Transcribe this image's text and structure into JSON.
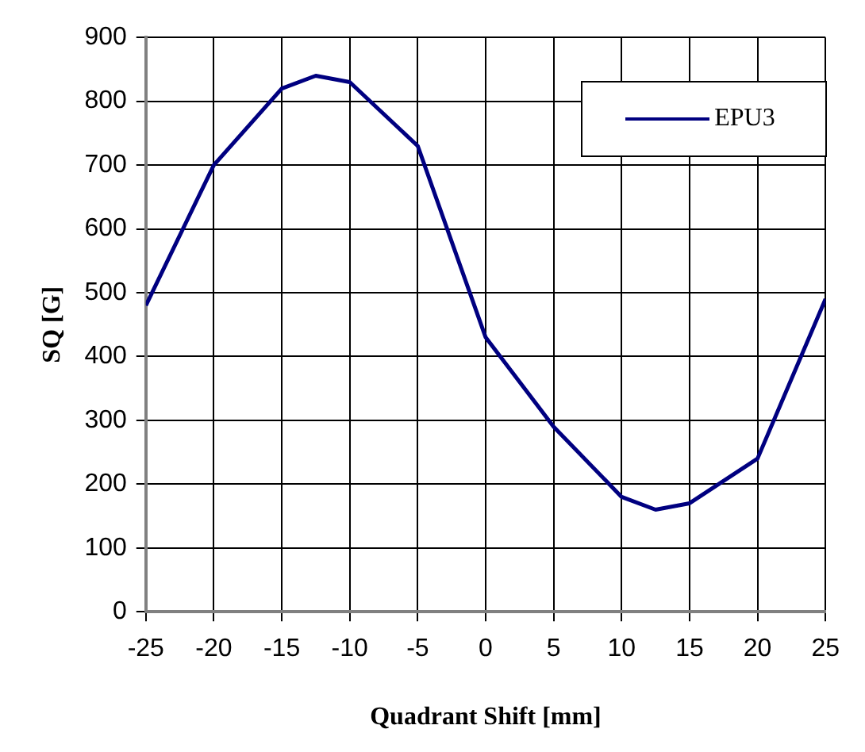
{
  "chart_data": {
    "type": "line",
    "xlabel": "Quadrant Shift [mm]",
    "ylabel": "SQ [G]",
    "x": [
      -25,
      -20,
      -15,
      -12.5,
      -10,
      -5,
      0,
      5,
      10,
      12.5,
      15,
      20,
      25
    ],
    "series": [
      {
        "name": "EPU3",
        "color": "#000080",
        "values": [
          480,
          700,
          820,
          840,
          830,
          730,
          430,
          290,
          180,
          160,
          170,
          240,
          490
        ]
      }
    ],
    "xlim": [
      -25,
      25
    ],
    "xticks": [
      -25,
      -20,
      -15,
      -10,
      -5,
      0,
      5,
      10,
      15,
      20,
      25
    ],
    "ylim": [
      0,
      900
    ],
    "yticks": [
      0,
      100,
      200,
      300,
      400,
      500,
      600,
      700,
      800,
      900
    ],
    "grid": true,
    "legend": "top right",
    "marker": "none",
    "line_style": "solid"
  }
}
